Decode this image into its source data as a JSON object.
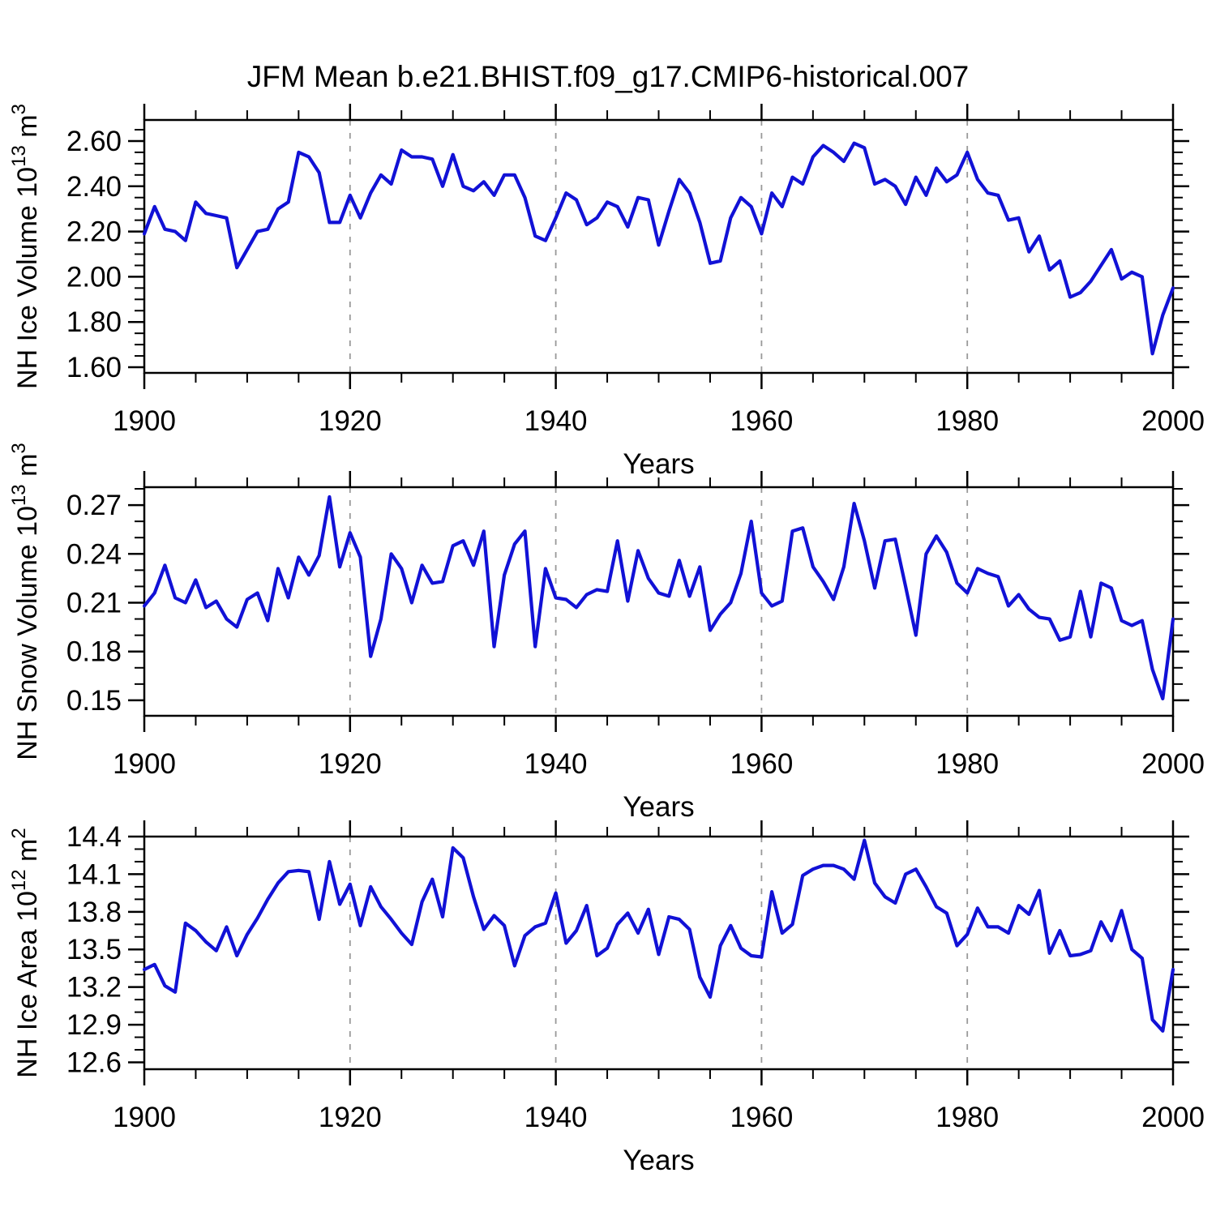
{
  "title": "JFM Mean b.e21.BHIST.f09_g17.CMIP6-historical.007",
  "line_color": "#1111d6",
  "grid_color": "#999999",
  "frame_color": "#000000",
  "chart_data": [
    {
      "type": "line",
      "ylabel": "NH Ice Volume 10^13 m^3",
      "xlabel": "Years",
      "xlim": [
        1900,
        2000
      ],
      "ylim": [
        1.575,
        2.693
      ],
      "xticks": [
        1900,
        1920,
        1940,
        1960,
        1980,
        2000
      ],
      "x_minor_step": 5,
      "yticks": [
        1.6,
        1.8,
        2.0,
        2.2,
        2.4,
        2.6
      ],
      "y_minor_step": 0.05,
      "ytick_decimals": 2,
      "gridlines_x": [
        1920,
        1940,
        1960,
        1980
      ],
      "x_start": 1900,
      "values": [
        2.19,
        2.31,
        2.21,
        2.2,
        2.16,
        2.33,
        2.28,
        2.27,
        2.26,
        2.04,
        2.12,
        2.2,
        2.21,
        2.3,
        2.33,
        2.55,
        2.53,
        2.46,
        2.24,
        2.24,
        2.36,
        2.26,
        2.37,
        2.45,
        2.41,
        2.56,
        2.53,
        2.53,
        2.52,
        2.4,
        2.54,
        2.4,
        2.38,
        2.42,
        2.36,
        2.45,
        2.45,
        2.35,
        2.18,
        2.16,
        2.26,
        2.37,
        2.34,
        2.23,
        2.26,
        2.33,
        2.31,
        2.22,
        2.35,
        2.34,
        2.14,
        2.29,
        2.43,
        2.37,
        2.24,
        2.06,
        2.07,
        2.26,
        2.35,
        2.31,
        2.19,
        2.37,
        2.31,
        2.44,
        2.41,
        2.53,
        2.58,
        2.55,
        2.51,
        2.59,
        2.57,
        2.41,
        2.43,
        2.4,
        2.32,
        2.44,
        2.36,
        2.48,
        2.42,
        2.45,
        2.55,
        2.43,
        2.37,
        2.36,
        2.25,
        2.26,
        2.11,
        2.18,
        2.03,
        2.07,
        1.91,
        1.93,
        1.98,
        2.05,
        2.12,
        1.99,
        2.02,
        2.0,
        1.66,
        1.83,
        1.95
      ]
    },
    {
      "type": "line",
      "ylabel": "NH Snow Volume 10^13 m^3",
      "xlabel": "Years",
      "xlim": [
        1900,
        2000
      ],
      "ylim": [
        0.1405,
        0.281
      ],
      "xticks": [
        1900,
        1920,
        1940,
        1960,
        1980,
        2000
      ],
      "x_minor_step": 5,
      "yticks": [
        0.15,
        0.18,
        0.21,
        0.24,
        0.27
      ],
      "y_minor_step": 0.01,
      "ytick_decimals": 2,
      "gridlines_x": [
        1920,
        1940,
        1960,
        1980
      ],
      "x_start": 1900,
      "values": [
        0.208,
        0.216,
        0.233,
        0.213,
        0.21,
        0.224,
        0.207,
        0.211,
        0.2,
        0.195,
        0.212,
        0.216,
        0.199,
        0.231,
        0.213,
        0.238,
        0.227,
        0.239,
        0.275,
        0.232,
        0.253,
        0.238,
        0.177,
        0.2,
        0.24,
        0.231,
        0.21,
        0.233,
        0.222,
        0.223,
        0.245,
        0.248,
        0.233,
        0.254,
        0.183,
        0.227,
        0.246,
        0.254,
        0.183,
        0.231,
        0.213,
        0.212,
        0.207,
        0.215,
        0.218,
        0.217,
        0.248,
        0.211,
        0.242,
        0.225,
        0.216,
        0.214,
        0.236,
        0.214,
        0.232,
        0.193,
        0.203,
        0.21,
        0.228,
        0.26,
        0.216,
        0.208,
        0.211,
        0.254,
        0.256,
        0.232,
        0.223,
        0.212,
        0.232,
        0.271,
        0.248,
        0.219,
        0.248,
        0.249,
        0.22,
        0.19,
        0.24,
        0.251,
        0.241,
        0.222,
        0.216,
        0.231,
        0.228,
        0.226,
        0.208,
        0.215,
        0.206,
        0.201,
        0.2,
        0.187,
        0.189,
        0.217,
        0.189,
        0.222,
        0.219,
        0.199,
        0.196,
        0.199,
        0.169,
        0.151,
        0.2
      ]
    },
    {
      "type": "line",
      "ylabel": "NH Ice Area 10^12 m^2",
      "xlabel": "Years",
      "xlim": [
        1900,
        2000
      ],
      "ylim": [
        12.545,
        14.4
      ],
      "xticks": [
        1900,
        1920,
        1940,
        1960,
        1980,
        2000
      ],
      "x_minor_step": 5,
      "yticks": [
        12.6,
        12.9,
        13.2,
        13.5,
        13.8,
        14.1,
        14.4
      ],
      "y_minor_step": 0.1,
      "ytick_decimals": 1,
      "gridlines_x": [
        1920,
        1940,
        1960,
        1980
      ],
      "x_start": 1900,
      "values": [
        13.34,
        13.38,
        13.21,
        13.16,
        13.71,
        13.65,
        13.56,
        13.49,
        13.68,
        13.45,
        13.62,
        13.75,
        13.9,
        14.03,
        14.12,
        14.13,
        14.12,
        13.74,
        14.2,
        13.86,
        14.02,
        13.69,
        14.0,
        13.84,
        13.74,
        13.63,
        13.54,
        13.88,
        14.06,
        13.76,
        14.31,
        14.23,
        13.92,
        13.66,
        13.77,
        13.69,
        13.37,
        13.61,
        13.68,
        13.71,
        13.95,
        13.55,
        13.65,
        13.85,
        13.45,
        13.51,
        13.7,
        13.79,
        13.63,
        13.82,
        13.46,
        13.76,
        13.74,
        13.66,
        13.28,
        13.12,
        13.53,
        13.69,
        13.51,
        13.45,
        13.44,
        13.96,
        13.63,
        13.7,
        14.09,
        14.14,
        14.17,
        14.17,
        14.14,
        14.06,
        14.37,
        14.03,
        13.92,
        13.87,
        14.1,
        14.14,
        14.0,
        13.84,
        13.79,
        13.53,
        13.62,
        13.83,
        13.68,
        13.68,
        13.63,
        13.85,
        13.78,
        13.97,
        13.47,
        13.65,
        13.45,
        13.46,
        13.49,
        13.72,
        13.57,
        13.81,
        13.5,
        13.43,
        12.94,
        12.85,
        13.34
      ]
    }
  ]
}
